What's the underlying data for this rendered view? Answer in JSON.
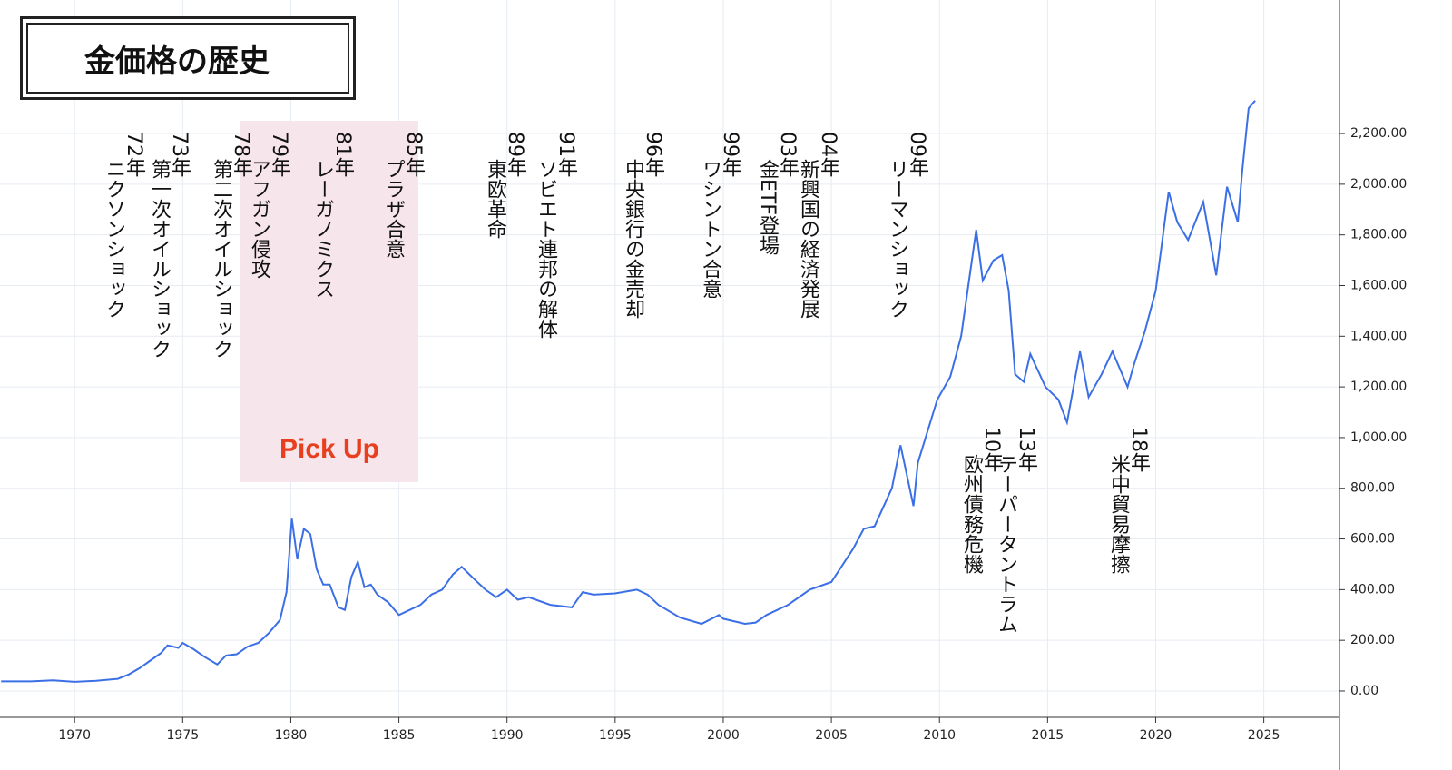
{
  "chart_data": {
    "type": "line",
    "title": "金価格の歴史",
    "highlight": "Pick Up",
    "color": "#3b6fe6",
    "grid": true,
    "x": [
      1966.6,
      1968,
      1969,
      1970,
      1971,
      1972,
      1972.5,
      1973,
      1973.5,
      1974,
      1974.3,
      1974.8,
      1975,
      1975.5,
      1976,
      1976.6,
      1977,
      1977.5,
      1978,
      1978.5,
      1979,
      1979.5,
      1979.8,
      1980.05,
      1980.3,
      1980.6,
      1980.9,
      1981.2,
      1981.5,
      1981.8,
      1982.2,
      1982.5,
      1982.8,
      1983.1,
      1983.4,
      1983.7,
      1984,
      1984.5,
      1985,
      1985.5,
      1986,
      1986.5,
      1987,
      1987.5,
      1987.9,
      1988.5,
      1989,
      1989.5,
      1990,
      1990.5,
      1991,
      1992,
      1993,
      1993.5,
      1994,
      1995,
      1996,
      1996.5,
      1997,
      1998,
      1999,
      1999.8,
      2000,
      2001,
      2001.5,
      2002,
      2003,
      2004,
      2005,
      2006,
      2006.5,
      2007,
      2007.8,
      2008.2,
      2008.8,
      2009,
      2009.9,
      2010.5,
      2011,
      2011.7,
      2012,
      2012.5,
      2012.9,
      2013.2,
      2013.5,
      2013.9,
      2014.2,
      2014.9,
      2015.5,
      2015.9,
      2016.5,
      2016.9,
      2017.5,
      2018,
      2018.7,
      2019,
      2019.5,
      2020,
      2020.6,
      2021,
      2021.5,
      2022.2,
      2022.8,
      2023.3,
      2023.8,
      2024,
      2024.3,
      2024.6
    ],
    "values": [
      38,
      38,
      42,
      36,
      40,
      48,
      65,
      90,
      120,
      150,
      180,
      170,
      190,
      165,
      135,
      105,
      140,
      145,
      175,
      190,
      230,
      280,
      390,
      680,
      520,
      640,
      620,
      480,
      420,
      420,
      330,
      320,
      450,
      510,
      410,
      420,
      380,
      350,
      300,
      320,
      340,
      380,
      400,
      460,
      490,
      440,
      400,
      370,
      400,
      360,
      370,
      340,
      330,
      390,
      380,
      385,
      400,
      380,
      340,
      290,
      265,
      300,
      285,
      265,
      270,
      300,
      340,
      400,
      430,
      560,
      640,
      650,
      800,
      970,
      730,
      900,
      1150,
      1240,
      1400,
      1820,
      1620,
      1700,
      1720,
      1580,
      1250,
      1220,
      1330,
      1200,
      1150,
      1060,
      1340,
      1160,
      1250,
      1340,
      1200,
      1290,
      1420,
      1580,
      1970,
      1850,
      1780,
      1930,
      1640,
      1990,
      1850,
      2050,
      2300,
      2330
    ],
    "xlim": [
      1966.55,
      2028.5
    ],
    "xticks": [
      1970,
      1975,
      1980,
      1985,
      1990,
      1995,
      2000,
      2005,
      2010,
      2015,
      2020,
      2025
    ],
    "ylim": [
      -104,
      2727
    ],
    "yticks": [
      {
        "value": 0,
        "label": "0.00"
      },
      {
        "value": 200,
        "label": "200.00"
      },
      {
        "value": 400,
        "label": "400.00"
      },
      {
        "value": 600,
        "label": "600.00"
      },
      {
        "value": 800,
        "label": "800.00"
      },
      {
        "value": 1000,
        "label": "1,000.00"
      },
      {
        "value": 1200,
        "label": "1,200.00"
      },
      {
        "value": 1400,
        "label": "1,400.00"
      },
      {
        "value": 1600,
        "label": "1,600.00"
      },
      {
        "value": 1800,
        "label": "1,800.00"
      },
      {
        "value": 2000,
        "label": "2,000.00"
      },
      {
        "value": 2200,
        "label": "2,200.00"
      }
    ],
    "annotations": [
      {
        "label": "72年",
        "text": "ニクソンショック"
      },
      {
        "label": "73年",
        "text": "第一次オイルショック"
      },
      {
        "label": "78年",
        "text": "第二次オイルショック"
      },
      {
        "label": "79年",
        "text": "アフガン侵攻"
      },
      {
        "label": "81年",
        "text": "レーガノミクス"
      },
      {
        "label": "85年",
        "text": "プラザ合意"
      },
      {
        "label": "89年",
        "text": "東欧革命"
      },
      {
        "label": "91年",
        "text": "ソビエト連邦の解体"
      },
      {
        "label": "96年",
        "text": "中央銀行の金売却"
      },
      {
        "label": "99年",
        "text": "ワシントン合意"
      },
      {
        "label": "03年",
        "text": "金ETF登場"
      },
      {
        "label": "04年",
        "text": "新興国の経済発展"
      },
      {
        "label": "09年",
        "text": "リーマンショック"
      },
      {
        "label": "10年",
        "text": "欧州債務危機"
      },
      {
        "label": "13年",
        "text": "テーパータントラム"
      },
      {
        "label": "18年",
        "text": "米中貿易摩擦"
      }
    ]
  }
}
